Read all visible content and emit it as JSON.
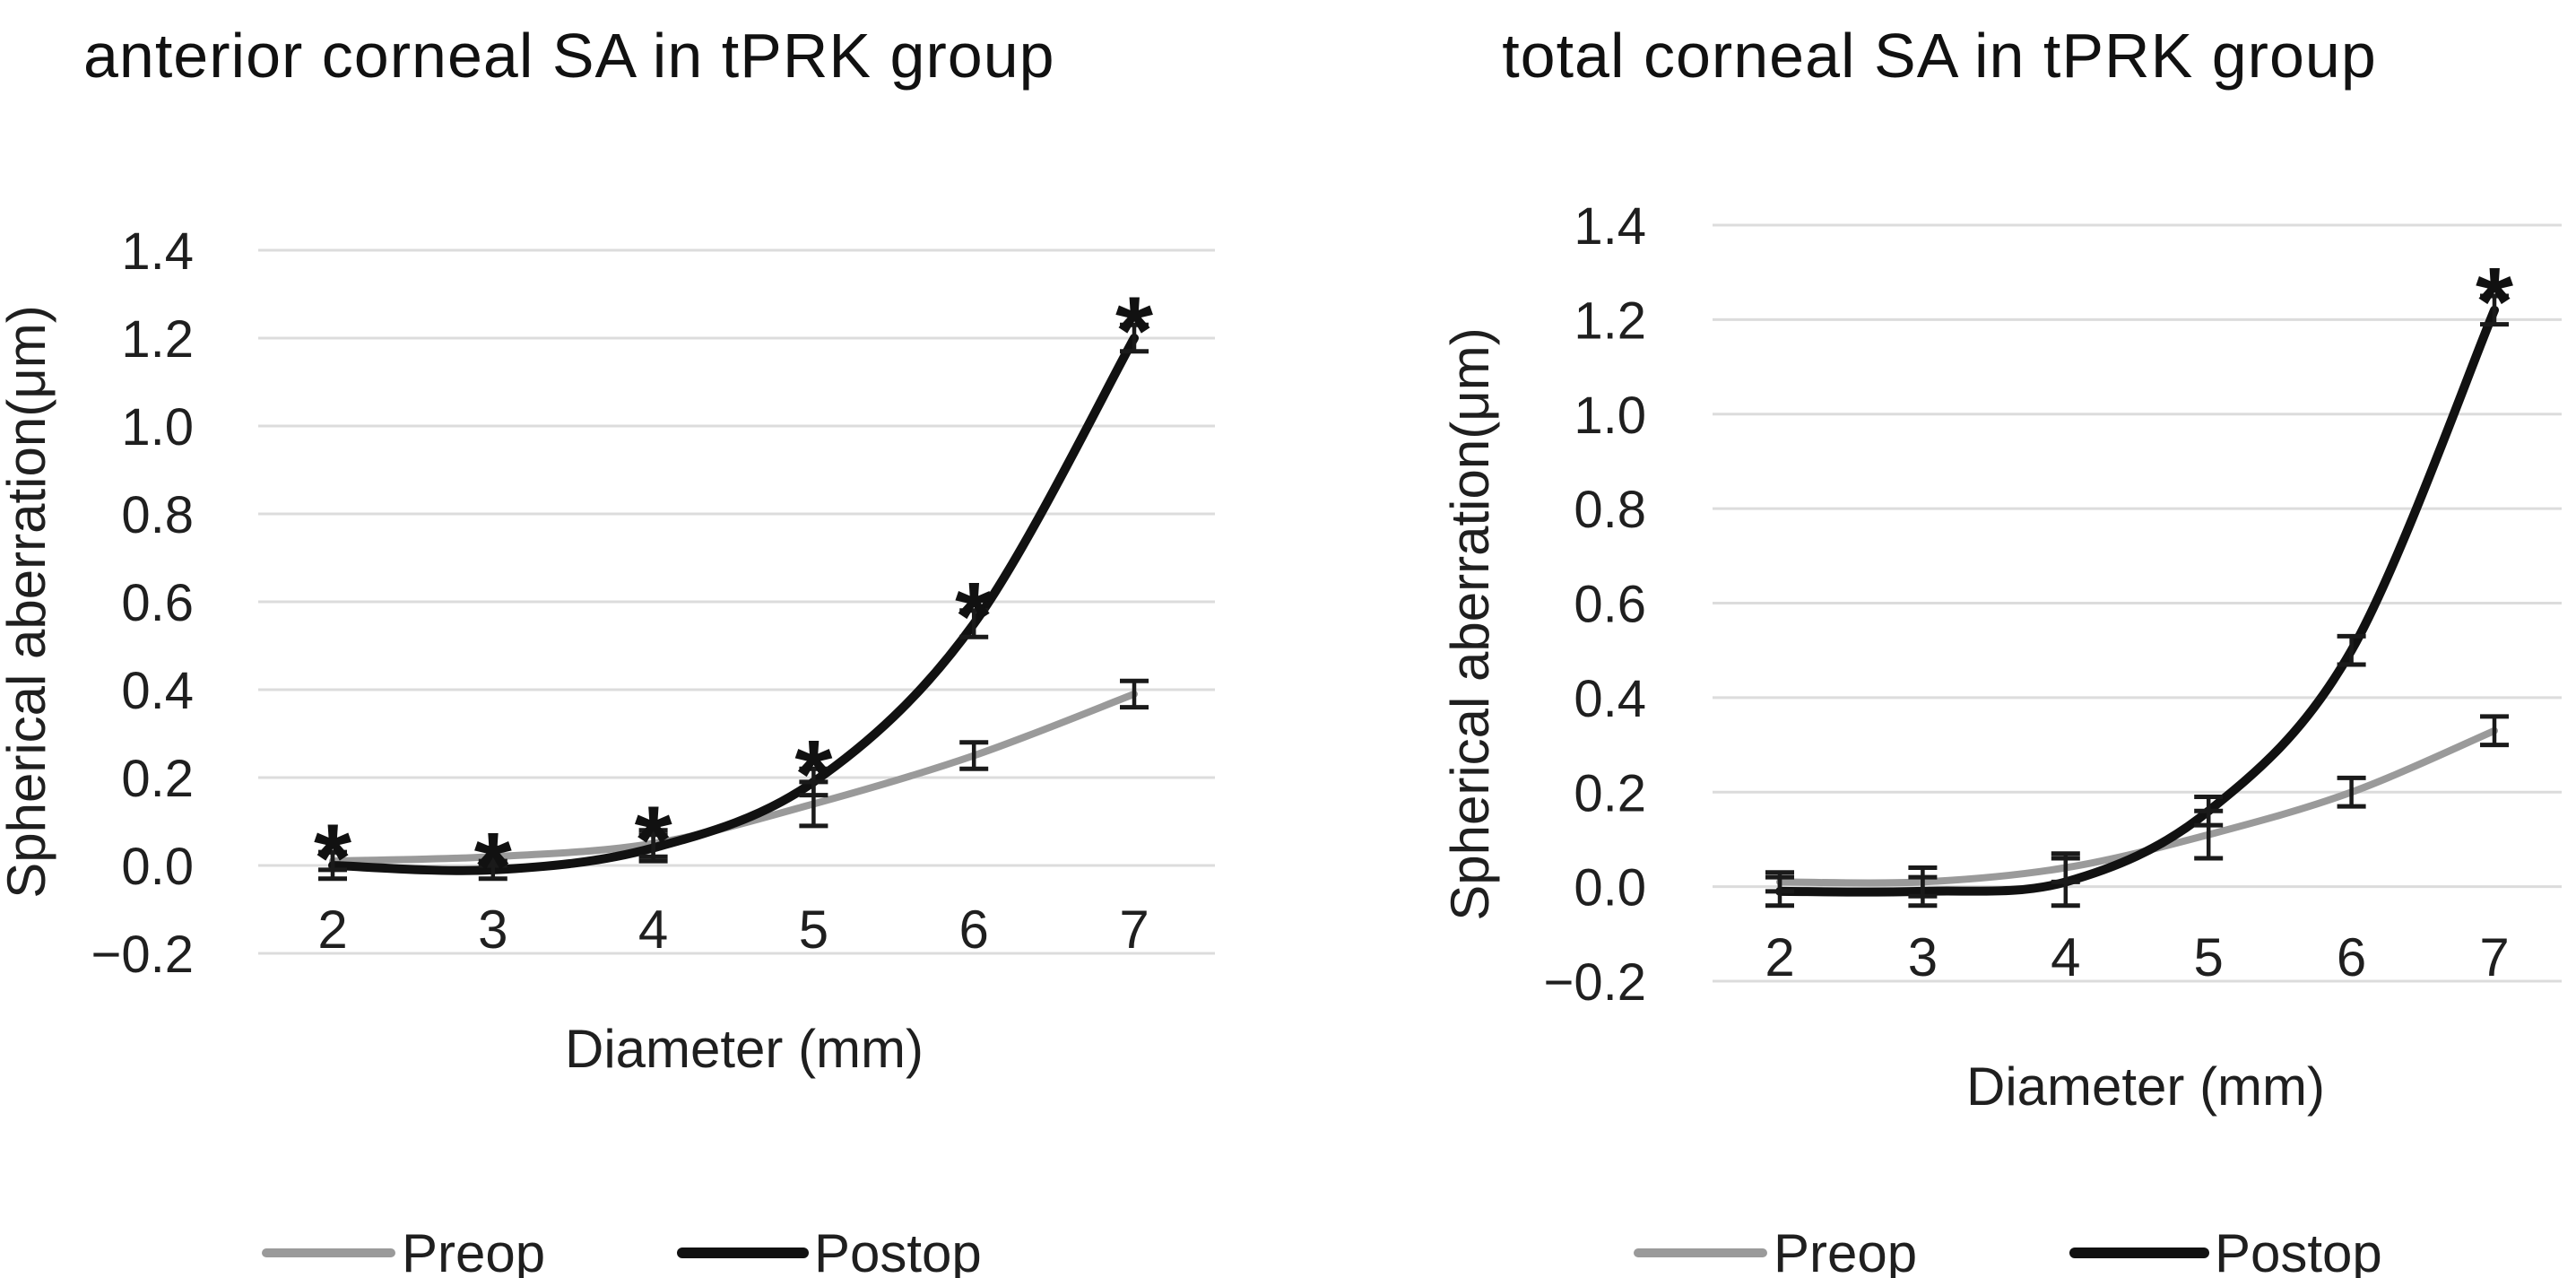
{
  "figure": {
    "background": "#ffffff",
    "colors": {
      "preop": "#9a9a9a",
      "postop": "#111111",
      "gridline": "#dcdcdc",
      "error_bar": "#1a1a1a",
      "text": "#1f1f1f",
      "title": "#111111"
    }
  },
  "chart_data": [
    {
      "type": "line",
      "title": "anterior corneal SA in tPRK group",
      "xlabel": "Diameter (mm)",
      "ylabel": "Spherical aberration(μm)",
      "categories": [
        2,
        3,
        4,
        5,
        6,
        7
      ],
      "xtick_labels": [
        "2",
        "3",
        "4",
        "5",
        "6",
        "7"
      ],
      "ylim": [
        -0.2,
        1.4
      ],
      "ytick_step": 0.2,
      "ytick_labels": [
        "1.4",
        "1.2",
        "1.0",
        "0.8",
        "0.6",
        "0.4",
        "0.2",
        "0.0",
        "−0.2"
      ],
      "grid": true,
      "legend_position": "bottom",
      "series": [
        {
          "name": "Preop",
          "color_key": "preop",
          "values": [
            0.01,
            0.02,
            0.05,
            0.14,
            0.25,
            0.39
          ],
          "errors": [
            0.02,
            0.02,
            0.03,
            0.05,
            0.03,
            0.03
          ]
        },
        {
          "name": "Postop",
          "color_key": "postop",
          "values": [
            0.0,
            -0.01,
            0.04,
            0.19,
            0.55,
            1.2
          ],
          "errors": [
            0.03,
            0.02,
            0.03,
            0.03,
            0.03,
            0.03
          ]
        }
      ],
      "significance": {
        "series": "Postop",
        "symbol": "*",
        "at_categories": [
          2,
          3,
          4,
          5,
          6,
          7
        ]
      }
    },
    {
      "type": "line",
      "title": "total corneal SA in tPRK group",
      "xlabel": "Diameter (mm)",
      "ylabel": "Spherical aberration(μm)",
      "categories": [
        2,
        3,
        4,
        5,
        6,
        7
      ],
      "xtick_labels": [
        "2",
        "3",
        "4",
        "5",
        "6",
        "7"
      ],
      "ylim": [
        -0.2,
        1.4
      ],
      "ytick_step": 0.2,
      "ytick_labels": [
        "1.4",
        "1.2",
        "1.0",
        "0.8",
        "0.6",
        "0.4",
        "0.2",
        "0.0",
        "−0.2"
      ],
      "grid": true,
      "legend_position": "bottom",
      "series": [
        {
          "name": "Preop",
          "color_key": "preop",
          "values": [
            0.01,
            0.01,
            0.04,
            0.11,
            0.2,
            0.33
          ],
          "errors": [
            0.02,
            0.03,
            0.03,
            0.05,
            0.03,
            0.03
          ]
        },
        {
          "name": "Postop",
          "color_key": "postop",
          "values": [
            -0.01,
            -0.01,
            0.01,
            0.16,
            0.5,
            1.22
          ],
          "errors": [
            0.03,
            0.03,
            0.05,
            0.03,
            0.03,
            0.03
          ]
        }
      ],
      "significance": {
        "series": "Postop",
        "symbol": "*",
        "at_categories": [
          7
        ]
      }
    }
  ]
}
